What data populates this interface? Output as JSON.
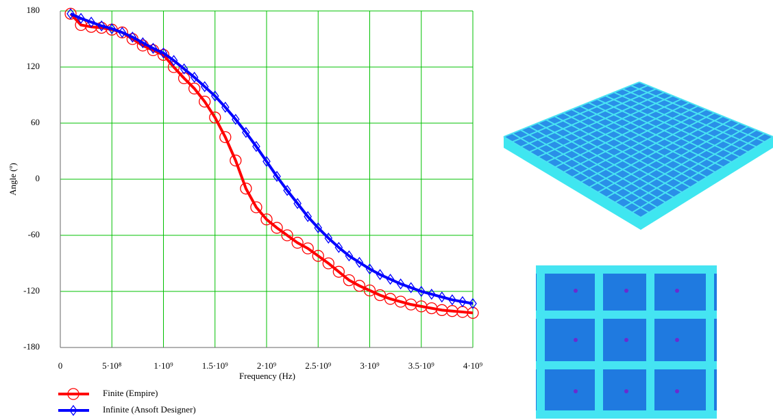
{
  "chart_data": {
    "type": "line",
    "ylabel": "Angle (º)",
    "xlabel": "Frequency (Hz)",
    "xlim": [
      0,
      4000000000
    ],
    "ylim": [
      -180,
      180
    ],
    "xticks": [
      0,
      {
        "value": 500000000,
        "label": "5·10⁸"
      },
      {
        "value": 1000000000,
        "label": "1·10⁹"
      },
      {
        "value": 1500000000,
        "label": "1.5·10⁹"
      },
      {
        "value": 2000000000,
        "label": "2·10⁹"
      },
      {
        "value": 2500000000,
        "label": "2.5·10⁹"
      },
      {
        "value": 3000000000,
        "label": "3·10⁹"
      },
      {
        "value": 3500000000,
        "label": "3.5·10⁹"
      },
      {
        "value": 4000000000,
        "label": "4·10⁹"
      }
    ],
    "yticks": [
      180,
      120,
      60,
      0,
      -60,
      -120,
      -180
    ],
    "grid": true,
    "grid_color": "#00c000",
    "legend": "below",
    "x": [
      100000000,
      200000000,
      300000000,
      400000000,
      500000000,
      600000000,
      700000000,
      800000000,
      900000000,
      1000000000,
      1100000000,
      1200000000,
      1300000000,
      1400000000,
      1500000000,
      1600000000,
      1700000000,
      1800000000,
      1900000000,
      2000000000,
      2100000000,
      2200000000,
      2300000000,
      2400000000,
      2500000000,
      2600000000,
      2700000000,
      2800000000,
      2900000000,
      3000000000,
      3100000000,
      3200000000,
      3300000000,
      3400000000,
      3500000000,
      3600000000,
      3700000000,
      3800000000,
      3900000000,
      4000000000
    ],
    "series": [
      {
        "name": "Finite (Empire)",
        "color": "#ff0000",
        "marker": "circle",
        "values": [
          177,
          165,
          163,
          162,
          160,
          157,
          150,
          143,
          138,
          133,
          120,
          108,
          97,
          83,
          66,
          45,
          20,
          -10,
          -30,
          -43,
          -52,
          -60,
          -68,
          -74,
          -82,
          -90,
          -99,
          -108,
          -114,
          -119,
          -124,
          -128,
          -131,
          -134,
          -136,
          -138,
          -140,
          -141,
          -142,
          -143
        ]
      },
      {
        "name": "Infinite (Ansoft Designer)",
        "color": "#0000ff",
        "marker": "diamond",
        "values": [
          177,
          172,
          168,
          164,
          161,
          157,
          152,
          146,
          140,
          135,
          127,
          118,
          109,
          99,
          89,
          77,
          64,
          50,
          35,
          19,
          3,
          -12,
          -26,
          -40,
          -52,
          -63,
          -73,
          -82,
          -89,
          -96,
          -102,
          -107,
          -112,
          -116,
          -120,
          -123,
          -126,
          -129,
          -131,
          -133
        ]
      }
    ]
  }
}
